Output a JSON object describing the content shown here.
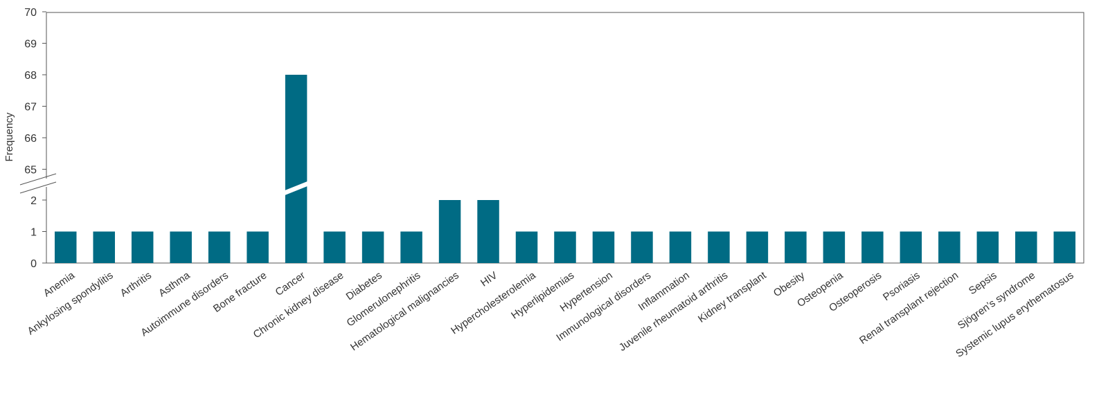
{
  "chart_data": {
    "type": "bar",
    "ylabel": "Frequency",
    "xlabel": "",
    "title": "",
    "axis_break": {
      "lower": [
        0,
        2
      ],
      "upper": [
        65,
        70
      ]
    },
    "lower_ticks": [
      "0",
      "1",
      "2"
    ],
    "upper_ticks": [
      "65",
      "66",
      "67",
      "68",
      "69",
      "70"
    ],
    "bar_color": "#006b84",
    "grid": false,
    "categories": [
      "Anemia",
      "Ankylosing spondylitis",
      "Arthritis",
      "Asthma",
      "Autoimmune disorders",
      "Bone fracture",
      "Cancer",
      "Chronic kidney disease",
      "Diabetes",
      "Glomerulonephritis",
      "Hematological malignancies",
      "HIV",
      "Hypercholesterolemia",
      "Hyperlipidemias",
      "Hypertension",
      "Immunological disorders",
      "Inflammation",
      "Juvenile rheumatoid arthritis",
      "Kidney transplant",
      "Obesity",
      "Osteopenia",
      "Osteoperosis",
      "Psoriasis",
      "Renal transplant rejection",
      "Sepsis",
      "Sjögren’s syndrome",
      "Systemic lupus erythematosus"
    ],
    "values": [
      1,
      1,
      1,
      1,
      1,
      1,
      68,
      1,
      1,
      1,
      2,
      2,
      1,
      1,
      1,
      1,
      1,
      1,
      1,
      1,
      1,
      1,
      1,
      1,
      1,
      1,
      1
    ]
  }
}
